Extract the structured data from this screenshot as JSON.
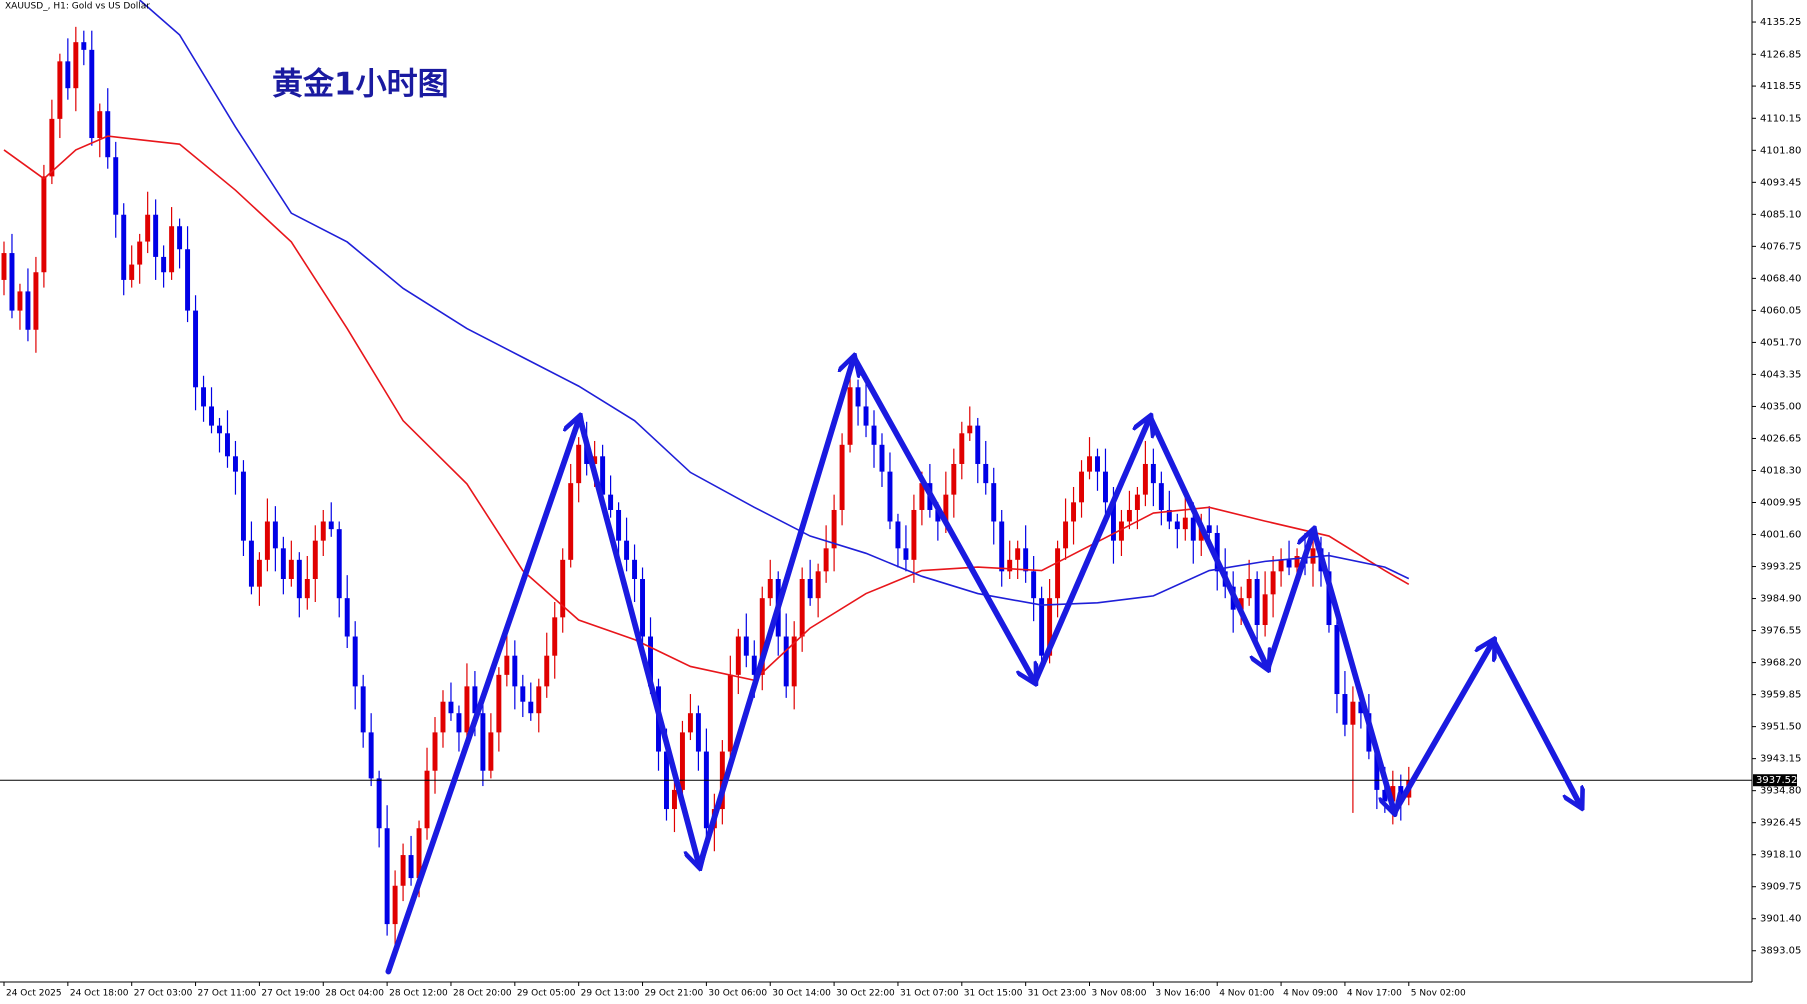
{
  "chart_data": {
    "type": "candlestick",
    "title": "黄金1小时图",
    "subtitle": "XAUUSD_, H1:  Gold vs US Dollar",
    "up_color": "#e00000",
    "down_color": "#0000e6",
    "ylim": [
      3884.9,
      4141.0
    ],
    "xlim": [
      -0.5,
      219
    ],
    "yticks": [
      4135.25,
      4126.85,
      4118.55,
      4110.15,
      {
        "value": 4101.8,
        "label": "4101.80"
      },
      4093.45,
      {
        "value": 4085.1,
        "label": "4085.10"
      },
      4076.75,
      {
        "value": 4068.4,
        "label": "4068.40"
      },
      4060.05,
      {
        "value": 4051.7,
        "label": "4051.70"
      },
      4043.35,
      {
        "value": 4035,
        "label": "4035.00"
      },
      4026.65,
      {
        "value": 4018.3,
        "label": "4018.30"
      },
      4009.95,
      {
        "value": 4001.6,
        "label": "4001.60"
      },
      3993.25,
      {
        "value": 3984.9,
        "label": "3984.90"
      },
      3976.55,
      {
        "value": 3968.2,
        "label": "3968.20"
      },
      3959.85,
      {
        "value": 3951.5,
        "label": "3951.50"
      },
      3943.15,
      {
        "value": 3934.8,
        "label": "3934.80"
      },
      3926.45,
      {
        "value": 3918.1,
        "label": "3918.10"
      },
      3909.75,
      {
        "value": 3901.4,
        "label": "3901.40"
      },
      3893.05
    ],
    "xticks": [
      {
        "value": 0,
        "label": "24 Oct 2025"
      },
      {
        "value": 8,
        "label": "24 Oct 18:00"
      },
      {
        "value": 16,
        "label": "27 Oct 03:00"
      },
      {
        "value": 24,
        "label": "27 Oct 11:00"
      },
      {
        "value": 32,
        "label": "27 Oct 19:00"
      },
      {
        "value": 40,
        "label": "28 Oct 04:00"
      },
      {
        "value": 48,
        "label": "28 Oct 12:00"
      },
      {
        "value": 56,
        "label": "28 Oct 20:00"
      },
      {
        "value": 64,
        "label": "29 Oct 05:00"
      },
      {
        "value": 72,
        "label": "29 Oct 13:00"
      },
      {
        "value": 80,
        "label": "29 Oct 21:00"
      },
      {
        "value": 88,
        "label": "30 Oct 06:00"
      },
      {
        "value": 96,
        "label": "30 Oct 14:00"
      },
      {
        "value": 104,
        "label": "30 Oct 22:00"
      },
      {
        "value": 112,
        "label": "31 Oct 07:00"
      },
      {
        "value": 120,
        "label": "31 Oct 15:00"
      },
      {
        "value": 128,
        "label": "31 Oct 23:00"
      },
      {
        "value": 136,
        "label": "3 Nov 08:00"
      },
      {
        "value": 144,
        "label": "3 Nov 16:00"
      },
      {
        "value": 152,
        "label": "4 Nov 01:00"
      },
      {
        "value": 160,
        "label": "4 Nov 09:00"
      },
      {
        "value": 168,
        "label": "4 Nov 17:00"
      },
      {
        "value": 176,
        "label": "5 Nov 02:00"
      }
    ],
    "current_price": 3937.52,
    "ohlc": [
      [
        4068,
        4078,
        4064,
        4075
      ],
      [
        4075,
        4080,
        4058,
        4060
      ],
      [
        4060,
        4067,
        4055,
        4065
      ],
      [
        4065,
        4071,
        4052,
        4055
      ],
      [
        4055,
        4074,
        4049,
        4070
      ],
      [
        4070,
        4098,
        4066,
        4095
      ],
      [
        4095,
        4115,
        4093,
        4110
      ],
      [
        4110,
        4127,
        4105,
        4125
      ],
      [
        4125,
        4131,
        4115,
        4118
      ],
      [
        4118,
        4134,
        4112,
        4130
      ],
      [
        4130,
        4133,
        4124,
        4128
      ],
      [
        4128,
        4133,
        4103,
        4105
      ],
      [
        4105,
        4114,
        4100,
        4112
      ],
      [
        4112,
        4118,
        4097,
        4100
      ],
      [
        4100,
        4104,
        4079,
        4085
      ],
      [
        4085,
        4088,
        4064,
        4068
      ],
      [
        4068,
        4077,
        4066,
        4072
      ],
      [
        4072,
        4080,
        4067,
        4078
      ],
      [
        4078,
        4091,
        4075,
        4085
      ],
      [
        4085,
        4089,
        4068,
        4074
      ],
      [
        4074,
        4077,
        4066,
        4070
      ],
      [
        4070,
        4087,
        4068,
        4082
      ],
      [
        4082,
        4084,
        4071,
        4076
      ],
      [
        4076,
        4082,
        4057,
        4060
      ],
      [
        4060,
        4064,
        4034,
        4040
      ],
      [
        4040,
        4043,
        4031,
        4035
      ],
      [
        4035,
        4040,
        4028,
        4030
      ],
      [
        4030,
        4032,
        4023,
        4028
      ],
      [
        4028,
        4034,
        4019,
        4022
      ],
      [
        4022,
        4026,
        4012,
        4018
      ],
      [
        4018,
        4021,
        3996,
        4000
      ],
      [
        4000,
        4005,
        3986,
        3988
      ],
      [
        3988,
        3997,
        3983,
        3995
      ],
      [
        3995,
        4011,
        3992,
        4005
      ],
      [
        4005,
        4009,
        3992,
        3998
      ],
      [
        3998,
        4001,
        3986,
        3990
      ],
      [
        3990,
        4000,
        3988,
        3995
      ],
      [
        3995,
        3997,
        3980,
        3985
      ],
      [
        3985,
        3996,
        3982,
        3990
      ],
      [
        3990,
        4004,
        3984,
        4000
      ],
      [
        4000,
        4008,
        3996,
        4005
      ],
      [
        4005,
        4010,
        4001,
        4003
      ],
      [
        4003,
        4005,
        3980,
        3985
      ],
      [
        3985,
        3991,
        3972,
        3975
      ],
      [
        3975,
        3979,
        3956,
        3962
      ],
      [
        3962,
        3965,
        3946,
        3950
      ],
      [
        3950,
        3955,
        3936,
        3938
      ],
      [
        3938,
        3940,
        3920,
        3925
      ],
      [
        3925,
        3931,
        3897,
        3900
      ],
      [
        3900,
        3914,
        3894,
        3910
      ],
      [
        3910,
        3921,
        3906,
        3918
      ],
      [
        3918,
        3923,
        3910,
        3912
      ],
      [
        3912,
        3927,
        3907,
        3925
      ],
      [
        3925,
        3946,
        3922,
        3940
      ],
      [
        3940,
        3954,
        3934,
        3950
      ],
      [
        3950,
        3961,
        3946,
        3958
      ],
      [
        3958,
        3963,
        3953,
        3955
      ],
      [
        3955,
        3957,
        3945,
        3950
      ],
      [
        3950,
        3968,
        3947,
        3962
      ],
      [
        3962,
        3966,
        3949,
        3955
      ],
      [
        3955,
        3958,
        3936,
        3940
      ],
      [
        3940,
        3955,
        3938,
        3950
      ],
      [
        3950,
        3967,
        3945,
        3965
      ],
      [
        3965,
        3976,
        3962,
        3970
      ],
      [
        3970,
        3974,
        3956,
        3962
      ],
      [
        3962,
        3965,
        3954,
        3958
      ],
      [
        3958,
        3963,
        3953,
        3955
      ],
      [
        3955,
        3964,
        3950,
        3962
      ],
      [
        3962,
        3976,
        3959,
        3970
      ],
      [
        3970,
        3984,
        3964,
        3980
      ],
      [
        3980,
        3998,
        3976,
        3995
      ],
      [
        3995,
        4020,
        3993,
        4015
      ],
      [
        4015,
        4027,
        4010,
        4025
      ],
      [
        4025,
        4031,
        4017,
        4020
      ],
      [
        4020,
        4026,
        4014,
        4022
      ],
      [
        4022,
        4025,
        4008,
        4012
      ],
      [
        4012,
        4017,
        4006,
        4008
      ],
      [
        4008,
        4010,
        3995,
        4000
      ],
      [
        4000,
        4006,
        3992,
        3995
      ],
      [
        3995,
        3999,
        3984,
        3990
      ],
      [
        3990,
        3993,
        3971,
        3975
      ],
      [
        3975,
        3980,
        3960,
        3962
      ],
      [
        3962,
        3964,
        3940,
        3945
      ],
      [
        3945,
        3951,
        3927,
        3930
      ],
      [
        3930,
        3939,
        3924,
        3935
      ],
      [
        3935,
        3953,
        3931,
        3950
      ],
      [
        3950,
        3960,
        3948,
        3955
      ],
      [
        3955,
        3957,
        3940,
        3945
      ],
      [
        3945,
        3951,
        3922,
        3925
      ],
      [
        3925,
        3934,
        3919,
        3930
      ],
      [
        3930,
        3948,
        3926,
        3945
      ],
      [
        3945,
        3970,
        3943,
        3965
      ],
      [
        3965,
        3977,
        3960,
        3975
      ],
      [
        3975,
        3981,
        3967,
        3970
      ],
      [
        3970,
        3974,
        3959,
        3965
      ],
      [
        3965,
        3988,
        3961,
        3985
      ],
      [
        3985,
        3995,
        3983,
        3990
      ],
      [
        3990,
        3992,
        3970,
        3975
      ],
      [
        3975,
        3981,
        3959,
        3962
      ],
      [
        3962,
        3979,
        3956,
        3975
      ],
      [
        3975,
        3993,
        3971,
        3990
      ],
      [
        3990,
        3995,
        3983,
        3985
      ],
      [
        3985,
        3994,
        3980,
        3992
      ],
      [
        3992,
        4004,
        3989,
        3998
      ],
      [
        3998,
        4012,
        3992,
        4008
      ],
      [
        4008,
        4028,
        4004,
        4025
      ],
      [
        4025,
        4045,
        4023,
        4040
      ],
      [
        4040,
        4042,
        4030,
        4035
      ],
      [
        4035,
        4041,
        4027,
        4030
      ],
      [
        4030,
        4034,
        4019,
        4025
      ],
      [
        4025,
        4028,
        4014,
        4018
      ],
      [
        4018,
        4023,
        4003,
        4005
      ],
      [
        4005,
        4007,
        3993,
        3998
      ],
      [
        3998,
        4004,
        3992,
        3995
      ],
      [
        3995,
        4012,
        3989,
        4008
      ],
      [
        4008,
        4018,
        4004,
        4015
      ],
      [
        4015,
        4020,
        4006,
        4008
      ],
      [
        4008,
        4010,
        4000,
        4005
      ],
      [
        4005,
        4018,
        4002,
        4012
      ],
      [
        4012,
        4024,
        4006,
        4020
      ],
      [
        4020,
        4031,
        4016,
        4028
      ],
      [
        4028,
        4035,
        4026,
        4030
      ],
      [
        4030,
        4032,
        4015,
        4020
      ],
      [
        4020,
        4026,
        4012,
        4015
      ],
      [
        4015,
        4019,
        3999,
        4005
      ],
      [
        4005,
        4008,
        3988,
        3992
      ],
      [
        3992,
        4000,
        3990,
        3995
      ],
      [
        3995,
        4000,
        3990,
        3998
      ],
      [
        3998,
        4004,
        3989,
        3992
      ],
      [
        3992,
        3996,
        3979,
        3985
      ],
      [
        3985,
        3988,
        3966,
        3970
      ],
      [
        3970,
        3990,
        3968,
        3985
      ],
      [
        3985,
        4000,
        3980,
        3998
      ],
      [
        3998,
        4011,
        3995,
        4005
      ],
      [
        4005,
        4014,
        3999,
        4010
      ],
      [
        4010,
        4021,
        4006,
        4018
      ],
      [
        4018,
        4027,
        4016,
        4022
      ],
      [
        4022,
        4024,
        4013,
        4018
      ],
      [
        4018,
        4024,
        4007,
        4010
      ],
      [
        4010,
        4014,
        3994,
        4000
      ],
      [
        4000,
        4008,
        3996,
        4005
      ],
      [
        4005,
        4013,
        4003,
        4008
      ],
      [
        4008,
        4014,
        4003,
        4012
      ],
      [
        4012,
        4026,
        4009,
        4020
      ],
      [
        4020,
        4024,
        4009,
        4015
      ],
      [
        4015,
        4018,
        4004,
        4008
      ],
      [
        4008,
        4013,
        4003,
        4005
      ],
      [
        4005,
        4007,
        3998,
        4003
      ],
      [
        4003,
        4012,
        4000,
        4006
      ],
      [
        4006,
        4010,
        3994,
        4000
      ],
      [
        4000,
        4007,
        3996,
        4004
      ],
      [
        4004,
        4009,
        4000,
        4002
      ],
      [
        4002,
        4004,
        3987,
        3992
      ],
      [
        3992,
        3998,
        3985,
        3988
      ],
      [
        3988,
        3992,
        3976,
        3982
      ],
      [
        3982,
        3988,
        3978,
        3985
      ],
      [
        3985,
        3995,
        3983,
        3990
      ],
      [
        3990,
        3992,
        3973,
        3978
      ],
      [
        3978,
        3992,
        3975,
        3986
      ],
      [
        3986,
        3996,
        3980,
        3992
      ],
      [
        3992,
        3998,
        3988,
        3995
      ],
      [
        3995,
        4000,
        3991,
        3993
      ],
      [
        3993,
        3998,
        3988,
        3996
      ],
      [
        3996,
        4002,
        3991,
        3994
      ],
      [
        3994,
        4002,
        3988,
        3998
      ],
      [
        3998,
        4001,
        3988,
        3992
      ],
      [
        3992,
        3997,
        3976,
        3978
      ],
      [
        3978,
        3980,
        3955,
        3960
      ],
      [
        3960,
        3966,
        3949,
        3952
      ],
      [
        3952,
        3962,
        3929,
        3958
      ],
      [
        3958,
        3961,
        3951,
        3955
      ],
      [
        3955,
        3960,
        3943,
        3945
      ],
      [
        3945,
        3947,
        3930,
        3935
      ],
      [
        3935,
        3941,
        3929,
        3932
      ],
      [
        3932,
        3940,
        3926,
        3936
      ],
      [
        3936,
        3939,
        3927,
        3933
      ],
      [
        3933,
        3941,
        3931,
        3937.52
      ]
    ],
    "lines": [
      {
        "color": "#e8161b",
        "x": [
          0,
          5,
          9,
          13,
          22,
          29,
          36,
          43,
          50,
          58,
          65,
          72,
          79,
          86,
          94,
          101,
          108,
          115,
          122,
          130,
          137,
          144,
          151,
          158,
          166,
          173,
          176
        ],
        "values": [
          4101.9,
          4094.4,
          4101.9,
          4105.5,
          4103.4,
          4091.4,
          4077.9,
          4055.3,
          4031.3,
          4014.8,
          3992.2,
          3979.3,
          3974.2,
          3967.2,
          3963.6,
          3977.2,
          3986.2,
          3992.2,
          3993.1,
          3992.2,
          3999.7,
          4007.2,
          4008.7,
          4005.1,
          4001.2,
          3992.2,
          3988.6
        ]
      },
      {
        "color": "#1f1fd8",
        "x": [
          17,
          22,
          29,
          36,
          43,
          50,
          58,
          65,
          72,
          79,
          86,
          94,
          101,
          108,
          115,
          122,
          130,
          137,
          144,
          151,
          158,
          166,
          173,
          176
        ],
        "values": [
          4141.0,
          4131.9,
          4107.9,
          4085.4,
          4077.9,
          4065.8,
          4055.3,
          4047.8,
          4040.3,
          4031.3,
          4017.8,
          4008.7,
          4001.2,
          3996.7,
          3990.7,
          3986.2,
          3983.2,
          3983.8,
          3985.6,
          3992.2,
          3994.6,
          3996.1,
          3993.1,
          3990.1
        ]
      }
    ]
  }
}
